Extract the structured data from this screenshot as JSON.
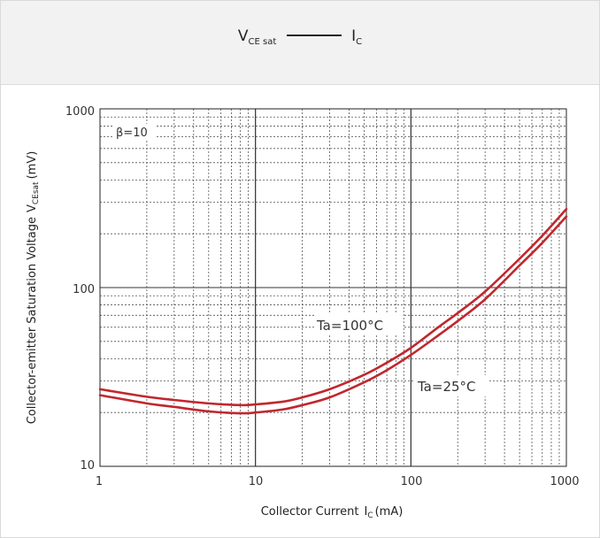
{
  "header": {
    "title_v": "V",
    "title_v_sub": "CE sat",
    "title_i": "I",
    "title_i_sub": "C"
  },
  "chart_data": {
    "type": "line",
    "title": "VCE sat —— IC",
    "xlabel": "Collector Current IC (mA)",
    "ylabel": "Collector-emitter Saturation Voltage VCEsat (mV)",
    "x_scale": "log",
    "y_scale": "log",
    "xlim": [
      1,
      1000
    ],
    "ylim": [
      10,
      1000
    ],
    "x_ticks": [
      1,
      10,
      100,
      1000
    ],
    "y_ticks": [
      10,
      100,
      1000
    ],
    "grid": true,
    "annotations": [
      "β=10",
      "Ta=100°C",
      "Ta=25°C"
    ],
    "series_color": "#c0272d",
    "series": [
      {
        "name": "Ta=100°C",
        "x": [
          1,
          2,
          3,
          5,
          8,
          10,
          15,
          20,
          30,
          50,
          70,
          100,
          150,
          200,
          300,
          500,
          700,
          1000
        ],
        "y": [
          27,
          24.5,
          23.5,
          22.5,
          22,
          22.2,
          23,
          24.3,
          27,
          32.5,
          38,
          46,
          60,
          72,
          95,
          145,
          195,
          275
        ]
      },
      {
        "name": "Ta=25°C",
        "x": [
          1,
          2,
          3,
          5,
          8,
          10,
          15,
          20,
          30,
          50,
          70,
          100,
          150,
          200,
          300,
          500,
          700,
          1000
        ],
        "y": [
          25,
          22.5,
          21.5,
          20.3,
          19.8,
          20,
          20.8,
          22,
          24.3,
          29.5,
          34.5,
          42,
          54,
          65,
          86,
          133,
          178,
          250
        ]
      }
    ]
  },
  "labels": {
    "beta": "β=10",
    "ta100": "Ta=100°C",
    "ta25": "Ta=25°C",
    "xlabel_main": "Collector Current",
    "xlabel_i": "I",
    "xlabel_sub": "C",
    "xlabel_unit": "(mA)",
    "ylabel_main": "Collector-emitter Saturation Voltage",
    "ylabel_v": "V",
    "ylabel_sub": "CEsat",
    "ylabel_unit": "(mV)",
    "xtick_1": "1",
    "xtick_10": "10",
    "xtick_100": "100",
    "xtick_1000": "1000",
    "ytick_10": "10",
    "ytick_100": "100",
    "ytick_1000": "1000"
  }
}
